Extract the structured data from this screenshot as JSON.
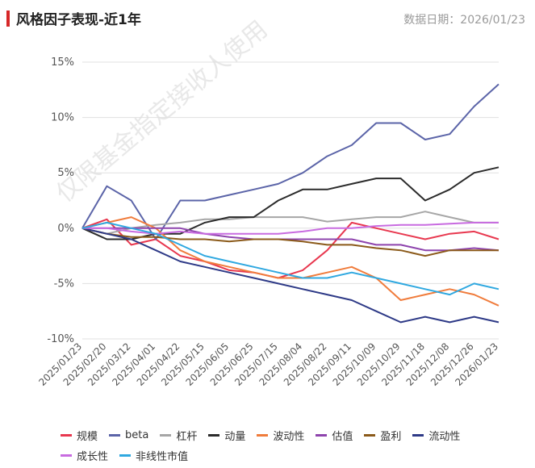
{
  "header": {
    "title": "风格因子表现-近1年",
    "date_label": "数据日期：2026/01/23"
  },
  "watermark": "仅限基金指定接收人使用",
  "chart_data": {
    "type": "line",
    "title": "风格因子表现-近1年",
    "ylabel": "",
    "xlabel": "",
    "ylim": [
      -10,
      15
    ],
    "yticks": [
      -10,
      -5,
      0,
      5,
      10,
      15
    ],
    "ytick_labels": [
      "-10%",
      "-5%",
      "0%",
      "5%",
      "10%",
      "15%"
    ],
    "x_ticks": [
      "2025/01/23",
      "2025/02/20",
      "2025/03/12",
      "2025/04/01",
      "2025/04/22",
      "2025/05/15",
      "2025/06/05",
      "2025/06/25",
      "2025/07/15",
      "2025/08/04",
      "2025/08/22",
      "2025/09/11",
      "2025/10/09",
      "2025/10/29",
      "2025/11/18",
      "2025/12/08",
      "2025/12/26",
      "2026/01/23"
    ],
    "x": [
      0,
      1,
      2,
      3,
      4,
      5,
      6,
      7,
      8,
      9,
      10,
      11,
      12,
      13,
      14,
      15,
      16,
      17
    ],
    "series": [
      {
        "name": "规模",
        "color": "#e8384f",
        "values": [
          0.0,
          0.8,
          -1.5,
          -1.0,
          -2.5,
          -3.0,
          -3.8,
          -4.0,
          -4.5,
          -3.8,
          -2.0,
          0.5,
          0.0,
          -0.5,
          -1.0,
          -0.5,
          -0.3,
          -1.0
        ]
      },
      {
        "name": "beta",
        "color": "#5b64a8",
        "values": [
          0.0,
          3.8,
          2.5,
          -1.0,
          2.5,
          2.5,
          3.0,
          3.5,
          4.0,
          5.0,
          6.5,
          7.5,
          9.5,
          9.5,
          8.0,
          8.5,
          11.0,
          13.0
        ]
      },
      {
        "name": "杠杆",
        "color": "#a6a6a6",
        "values": [
          0.0,
          -0.5,
          0.0,
          0.3,
          0.5,
          0.8,
          0.8,
          1.0,
          1.0,
          1.0,
          0.6,
          0.8,
          1.0,
          1.0,
          1.5,
          1.0,
          0.5,
          0.5
        ]
      },
      {
        "name": "动量",
        "color": "#2b2b2b",
        "values": [
          0.0,
          -1.0,
          -1.0,
          -0.5,
          -0.5,
          0.5,
          1.0,
          1.0,
          2.5,
          3.5,
          3.5,
          4.0,
          4.5,
          4.5,
          2.5,
          3.5,
          5.0,
          5.5
        ]
      },
      {
        "name": "波动性",
        "color": "#f07c3c",
        "values": [
          0.0,
          0.5,
          1.0,
          0.0,
          -2.0,
          -3.0,
          -3.5,
          -4.0,
          -4.5,
          -4.5,
          -4.0,
          -3.5,
          -4.5,
          -6.5,
          -6.0,
          -5.5,
          -6.0,
          -7.0
        ]
      },
      {
        "name": "估值",
        "color": "#8e44ad",
        "values": [
          0.0,
          0.0,
          0.0,
          0.0,
          0.0,
          -0.5,
          -0.8,
          -1.0,
          -1.0,
          -1.0,
          -1.0,
          -1.0,
          -1.5,
          -1.5,
          -2.0,
          -2.0,
          -1.8,
          -2.0
        ]
      },
      {
        "name": "盈利",
        "color": "#8b5a1a",
        "values": [
          0.0,
          -0.5,
          -0.8,
          -0.8,
          -1.0,
          -1.0,
          -1.2,
          -1.0,
          -1.0,
          -1.2,
          -1.5,
          -1.5,
          -1.8,
          -2.0,
          -2.5,
          -2.0,
          -2.0,
          -2.0
        ]
      },
      {
        "name": "流动性",
        "color": "#2e3a87",
        "values": [
          0.0,
          -0.5,
          -1.0,
          -2.0,
          -3.0,
          -3.5,
          -4.0,
          -4.5,
          -5.0,
          -5.5,
          -6.0,
          -6.5,
          -7.5,
          -8.5,
          -8.0,
          -8.5,
          -8.0,
          -8.5
        ]
      },
      {
        "name": "成长性",
        "color": "#c86be0",
        "values": [
          0.0,
          0.0,
          -0.3,
          -0.5,
          -0.3,
          -0.5,
          -0.5,
          -0.5,
          -0.5,
          -0.3,
          0.0,
          0.0,
          0.2,
          0.3,
          0.3,
          0.4,
          0.5,
          0.5
        ]
      },
      {
        "name": "非线性市值",
        "color": "#2fa8e0",
        "values": [
          0.0,
          0.5,
          0.0,
          -0.5,
          -1.5,
          -2.5,
          -3.0,
          -3.5,
          -4.0,
          -4.5,
          -4.5,
          -4.0,
          -4.5,
          -5.0,
          -5.5,
          -6.0,
          -5.0,
          -5.5
        ]
      }
    ],
    "legend_position": "bottom"
  }
}
